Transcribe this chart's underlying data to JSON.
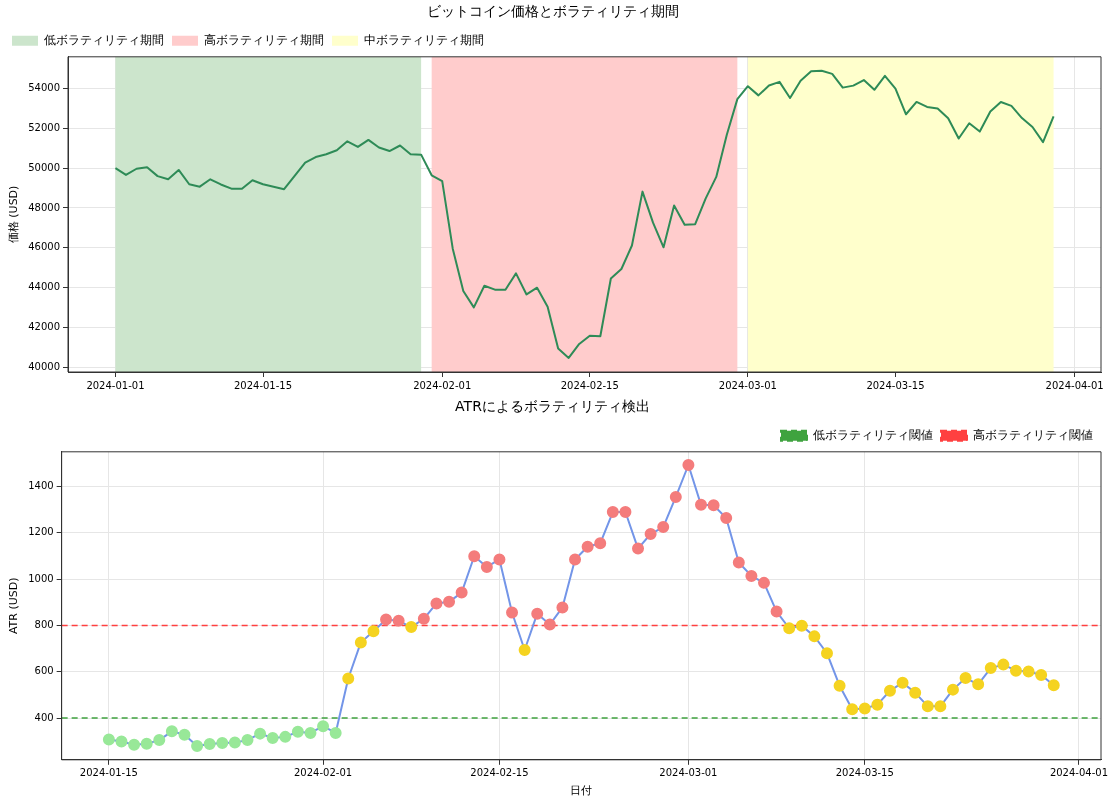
{
  "chart_data": [
    {
      "type": "line",
      "title": "ビットコイン価格とボラティリティ期間",
      "ylabel": "価格 (USD)",
      "x": [
        "2024-01-01",
        "2024-01-02",
        "2024-01-03",
        "2024-01-04",
        "2024-01-05",
        "2024-01-06",
        "2024-01-07",
        "2024-01-08",
        "2024-01-09",
        "2024-01-10",
        "2024-01-11",
        "2024-01-12",
        "2024-01-13",
        "2024-01-14",
        "2024-01-15",
        "2024-01-16",
        "2024-01-17",
        "2024-01-18",
        "2024-01-19",
        "2024-01-20",
        "2024-01-21",
        "2024-01-22",
        "2024-01-23",
        "2024-01-24",
        "2024-01-25",
        "2024-01-26",
        "2024-01-27",
        "2024-01-28",
        "2024-01-29",
        "2024-01-30",
        "2024-01-31",
        "2024-02-01",
        "2024-02-02",
        "2024-02-03",
        "2024-02-04",
        "2024-02-05",
        "2024-02-06",
        "2024-02-07",
        "2024-02-08",
        "2024-02-09",
        "2024-02-10",
        "2024-02-11",
        "2024-02-12",
        "2024-02-13",
        "2024-02-14",
        "2024-02-15",
        "2024-02-16",
        "2024-02-17",
        "2024-02-18",
        "2024-02-19",
        "2024-02-20",
        "2024-02-21",
        "2024-02-22",
        "2024-02-23",
        "2024-02-24",
        "2024-02-25",
        "2024-02-26",
        "2024-02-27",
        "2024-02-28",
        "2024-02-29",
        "2024-03-01",
        "2024-03-02",
        "2024-03-03",
        "2024-03-04",
        "2024-03-05",
        "2024-03-06",
        "2024-03-07",
        "2024-03-08",
        "2024-03-09",
        "2024-03-10",
        "2024-03-11",
        "2024-03-12",
        "2024-03-13",
        "2024-03-14",
        "2024-03-15",
        "2024-03-16",
        "2024-03-17",
        "2024-03-18",
        "2024-03-19",
        "2024-03-20",
        "2024-03-21",
        "2024-03-22",
        "2024-03-23",
        "2024-03-24",
        "2024-03-25",
        "2024-03-26",
        "2024-03-27",
        "2024-03-28",
        "2024-03-29",
        "2024-03-30"
      ],
      "series": [
        {
          "color": "#2e8b57",
          "values": [
            50000,
            49660,
            49970,
            50050,
            49600,
            49440,
            49910,
            49190,
            49070,
            49440,
            49180,
            48970,
            48960,
            49390,
            49190,
            49070,
            48940,
            49610,
            50280,
            50560,
            50700,
            50900,
            51350,
            51070,
            51420,
            51040,
            50860,
            51140,
            50700,
            50680,
            49640,
            49350,
            45950,
            43820,
            43000,
            44090,
            43890,
            43890,
            44710,
            43650,
            43990,
            43030,
            40930,
            40460,
            41160,
            41570,
            41550,
            44450,
            44930,
            46110,
            48820,
            47260,
            46020,
            48120,
            47150,
            47180,
            48480,
            49560,
            51680,
            53470,
            54120,
            53660,
            54160,
            54340,
            53530,
            54400,
            54870,
            54900,
            54740,
            54050,
            54150,
            54430,
            53940,
            54640,
            54000,
            52710,
            53330,
            53080,
            53000,
            52510,
            51490,
            52260,
            51840,
            52850,
            53330,
            53130,
            52520,
            52070,
            51310,
            52610
          ]
        }
      ],
      "bands": [
        {
          "axis": "x",
          "from": "2024-01-01",
          "to": "2024-01-30",
          "label": "低ボラティリティ期間",
          "color": "#cce5cc"
        },
        {
          "axis": "x",
          "from": "2024-01-31",
          "to": "2024-02-29",
          "label": "高ボラティリティ期間",
          "color": "#ffcccc"
        },
        {
          "axis": "x",
          "from": "2024-03-01",
          "to": "2024-03-30",
          "label": "中ボラティリティ期間",
          "color": "#ffffcc"
        }
      ],
      "xlim": [
        "2023-12-27T12:00",
        "2024-04-03T12:00"
      ],
      "xticks": [
        "2024-01-01",
        "2024-01-15",
        "2024-02-01",
        "2024-02-15",
        "2024-03-01",
        "2024-03-15",
        "2024-04-01"
      ],
      "ylim": [
        39750,
        55600
      ],
      "yticks": [
        40000,
        42000,
        44000,
        46000,
        48000,
        50000,
        52000,
        54000
      ],
      "grid": true,
      "legend": "top left",
      "marker": "none",
      "line_style": "solid"
    },
    {
      "type": "line",
      "title": "ATRによるボラティリティ検出",
      "xlabel": "日付",
      "ylabel": "ATR (USD)",
      "x": [
        "2024-01-15",
        "2024-01-16",
        "2024-01-17",
        "2024-01-18",
        "2024-01-19",
        "2024-01-20",
        "2024-01-21",
        "2024-01-22",
        "2024-01-23",
        "2024-01-24",
        "2024-01-25",
        "2024-01-26",
        "2024-01-27",
        "2024-01-28",
        "2024-01-29",
        "2024-01-30",
        "2024-01-31",
        "2024-02-01",
        "2024-02-02",
        "2024-02-03",
        "2024-02-04",
        "2024-02-05",
        "2024-02-06",
        "2024-02-07",
        "2024-02-08",
        "2024-02-09",
        "2024-02-10",
        "2024-02-11",
        "2024-02-12",
        "2024-02-13",
        "2024-02-14",
        "2024-02-15",
        "2024-02-16",
        "2024-02-17",
        "2024-02-18",
        "2024-02-19",
        "2024-02-20",
        "2024-02-21",
        "2024-02-22",
        "2024-02-23",
        "2024-02-24",
        "2024-02-25",
        "2024-02-26",
        "2024-02-27",
        "2024-02-28",
        "2024-02-29",
        "2024-03-01",
        "2024-03-02",
        "2024-03-03",
        "2024-03-04",
        "2024-03-05",
        "2024-03-06",
        "2024-03-07",
        "2024-03-08",
        "2024-03-09",
        "2024-03-10",
        "2024-03-11",
        "2024-03-12",
        "2024-03-13",
        "2024-03-14",
        "2024-03-15",
        "2024-03-16",
        "2024-03-17",
        "2024-03-18",
        "2024-03-19",
        "2024-03-20",
        "2024-03-21",
        "2024-03-22",
        "2024-03-23",
        "2024-03-24",
        "2024-03-25",
        "2024-03-26",
        "2024-03-27",
        "2024-03-28",
        "2024-03-29",
        "2024-03-30"
      ],
      "series": [
        {
          "color": "#7395e8",
          "marker": "circle",
          "values": [
            308,
            299,
            285,
            289,
            305,
            343,
            328,
            280,
            288,
            293,
            295,
            305,
            333,
            314,
            319,
            341,
            336,
            365,
            336,
            571,
            727,
            775,
            826,
            820,
            793,
            829,
            895,
            902,
            942,
            1099,
            1053,
            1085,
            856,
            694,
            851,
            804,
            878,
            1085,
            1140,
            1155,
            1290,
            1290,
            1132,
            1195,
            1225,
            1355,
            1493,
            1321,
            1319,
            1264,
            1072,
            1014,
            984,
            860,
            788,
            799,
            753,
            680,
            540,
            438,
            442,
            458,
            518,
            553,
            510,
            451,
            451,
            523,
            573,
            546,
            616,
            631,
            605,
            601,
            586,
            542
          ],
          "colors": [
            "#98e898",
            "#98e898",
            "#98e898",
            "#98e898",
            "#98e898",
            "#98e898",
            "#98e898",
            "#98e898",
            "#98e898",
            "#98e898",
            "#98e898",
            "#98e898",
            "#98e898",
            "#98e898",
            "#98e898",
            "#98e898",
            "#98e898",
            "#98e898",
            "#98e898",
            "#f5d320",
            "#f5d320",
            "#f5d320",
            "#f47c7c",
            "#f47c7c",
            "#f5d320",
            "#f47c7c",
            "#f47c7c",
            "#f47c7c",
            "#f47c7c",
            "#f47c7c",
            "#f47c7c",
            "#f47c7c",
            "#f47c7c",
            "#f5d320",
            "#f47c7c",
            "#f47c7c",
            "#f47c7c",
            "#f47c7c",
            "#f47c7c",
            "#f47c7c",
            "#f47c7c",
            "#f47c7c",
            "#f47c7c",
            "#f47c7c",
            "#f47c7c",
            "#f47c7c",
            "#f47c7c",
            "#f47c7c",
            "#f47c7c",
            "#f47c7c",
            "#f47c7c",
            "#f47c7c",
            "#f47c7c",
            "#f47c7c",
            "#f5d320",
            "#f5d320",
            "#f5d320",
            "#f5d320",
            "#f5d320",
            "#f5d320",
            "#f5d320",
            "#f5d320",
            "#f5d320",
            "#f5d320",
            "#f5d320",
            "#f5d320",
            "#f5d320",
            "#f5d320",
            "#f5d320",
            "#f5d320",
            "#f5d320",
            "#f5d320",
            "#f5d320",
            "#f5d320",
            "#f5d320",
            "#f5d320"
          ]
        }
      ],
      "ref_lines": [
        {
          "axis": "y",
          "value": 400,
          "label": "低ボラティリティ閾値",
          "color": "#3fa33f",
          "line_style": "dashed"
        },
        {
          "axis": "y",
          "value": 800,
          "label": "高ボラティリティ閾値",
          "color": "#ff4040",
          "line_style": "dashed"
        }
      ],
      "xlim": [
        "2024-01-11T06:00",
        "2024-04-02T18:00"
      ],
      "xticks": [
        "2024-01-15",
        "2024-02-01",
        "2024-02-15",
        "2024-03-01",
        "2024-03-15",
        "2024-04-01"
      ],
      "ylim": [
        220,
        1550
      ],
      "yticks": [
        400,
        600,
        800,
        1000,
        1200,
        1400
      ],
      "grid": true,
      "legend": "top right",
      "line_style": "solid"
    }
  ]
}
